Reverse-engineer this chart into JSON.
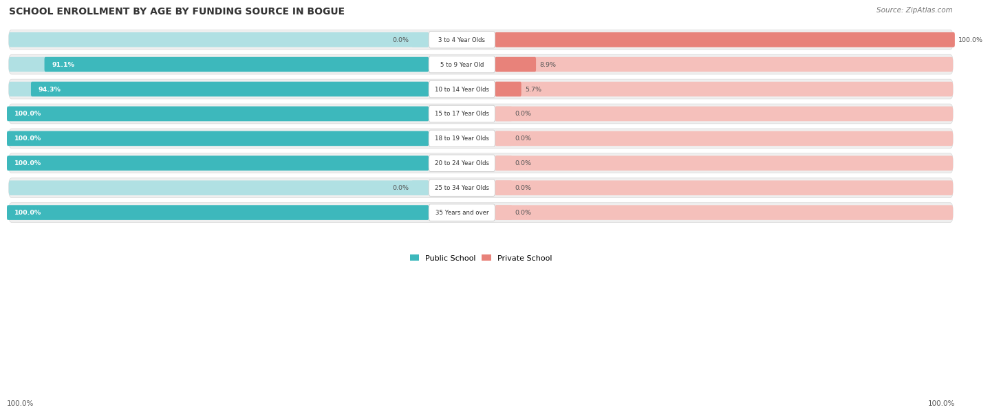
{
  "title": "SCHOOL ENROLLMENT BY AGE BY FUNDING SOURCE IN BOGUE",
  "source": "Source: ZipAtlas.com",
  "categories": [
    "3 to 4 Year Olds",
    "5 to 9 Year Old",
    "10 to 14 Year Olds",
    "15 to 17 Year Olds",
    "18 to 19 Year Olds",
    "20 to 24 Year Olds",
    "25 to 34 Year Olds",
    "35 Years and over"
  ],
  "public_pct": [
    0.0,
    91.1,
    94.3,
    100.0,
    100.0,
    100.0,
    0.0,
    100.0
  ],
  "private_pct": [
    100.0,
    8.9,
    5.7,
    0.0,
    0.0,
    0.0,
    0.0,
    0.0
  ],
  "public_color": "#3db8bc",
  "private_color": "#e8827a",
  "public_color_light": "#b0e0e3",
  "private_color_light": "#f5c0bb",
  "row_bg_color": "#efefef",
  "title_fontsize": 10,
  "source_fontsize": 7.5
}
